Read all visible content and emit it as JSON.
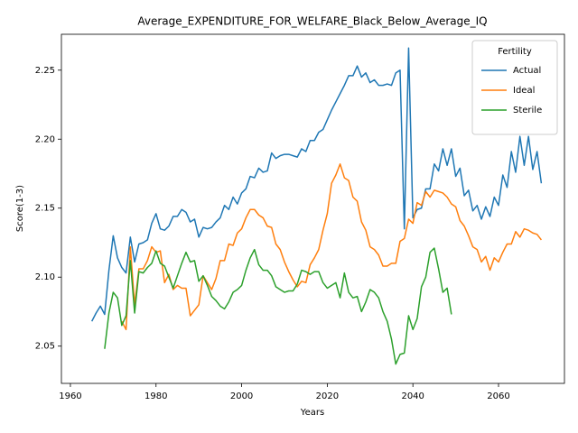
{
  "chart_data": {
    "type": "line",
    "title": "Average_EXPENDITURE_FOR_WELFARE_Black_Below_Average_IQ",
    "x_label": "Years",
    "y_label": "Score(1-3)",
    "xlim": [
      1957.9,
      2075.4
    ],
    "ylim": [
      2.023,
      2.276
    ],
    "xticks": [
      1960,
      1980,
      2000,
      2020,
      2040,
      2060
    ],
    "yticks": [
      2.05,
      {
        "value": 2.1,
        "label": "2.10"
      },
      2.15,
      {
        "value": 2.2,
        "label": "2.20"
      },
      2.25
    ],
    "grid": false,
    "legend_title": "Fertility",
    "legend_loc": "upper right",
    "series": [
      {
        "name": "Actual",
        "color": "#1f77b4",
        "x": [
          1965,
          1966,
          1967,
          1968,
          1969,
          1970,
          1971,
          1972,
          1973,
          1974,
          1975,
          1976,
          1977,
          1978,
          1979,
          1980,
          1981,
          1982,
          1983,
          1984,
          1985,
          1986,
          1987,
          1988,
          1989,
          1990,
          1991,
          1992,
          1993,
          1994,
          1995,
          1996,
          1997,
          1998,
          1999,
          2000,
          2001,
          2002,
          2003,
          2004,
          2005,
          2006,
          2007,
          2008,
          2009,
          2010,
          2011,
          2012,
          2013,
          2014,
          2015,
          2016,
          2017,
          2018,
          2019,
          2020,
          2021,
          2022,
          2023,
          2024,
          2025,
          2026,
          2027,
          2028,
          2029,
          2030,
          2031,
          2032,
          2033,
          2034,
          2035,
          2036,
          2037,
          2038,
          2039,
          2040,
          2041,
          2042,
          2043,
          2044,
          2045,
          2046,
          2047,
          2048,
          2049,
          2050,
          2051,
          2052,
          2053,
          2054,
          2055,
          2056,
          2057,
          2058,
          2059,
          2060,
          2061,
          2062,
          2063,
          2064,
          2065,
          2066,
          2067,
          2068,
          2069,
          2070
        ],
        "values": [
          2.068,
          2.074,
          2.079,
          2.073,
          2.105,
          2.13,
          2.114,
          2.107,
          2.103,
          2.129,
          2.111,
          2.124,
          2.125,
          2.127,
          2.139,
          2.146,
          2.135,
          2.134,
          2.137,
          2.144,
          2.144,
          2.149,
          2.147,
          2.14,
          2.142,
          2.129,
          2.136,
          2.135,
          2.136,
          2.14,
          2.143,
          2.152,
          2.149,
          2.158,
          2.153,
          2.161,
          2.164,
          2.173,
          2.172,
          2.179,
          2.176,
          2.177,
          2.19,
          2.186,
          2.188,
          2.189,
          2.189,
          2.188,
          2.187,
          2.193,
          2.191,
          2.199,
          2.199,
          2.205,
          2.207,
          2.214,
          2.221,
          2.227,
          2.233,
          2.239,
          2.246,
          2.246,
          2.253,
          2.245,
          2.248,
          2.241,
          2.243,
          2.239,
          2.239,
          2.24,
          2.239,
          2.248,
          2.25,
          2.135,
          2.266,
          2.143,
          2.149,
          2.15,
          2.164,
          2.164,
          2.182,
          2.177,
          2.193,
          2.181,
          2.193,
          2.173,
          2.179,
          2.159,
          2.163,
          2.148,
          2.152,
          2.142,
          2.151,
          2.144,
          2.158,
          2.152,
          2.174,
          2.165,
          2.191,
          2.176,
          2.202,
          2.181,
          2.202,
          2.178,
          2.191,
          2.168
        ]
      },
      {
        "name": "Ideal",
        "color": "#ff7f0e",
        "x": [
          1972,
          1973,
          1974,
          1975,
          1976,
          1977,
          1978,
          1979,
          1980,
          1981,
          1982,
          1983,
          1984,
          1985,
          1986,
          1987,
          1988,
          1989,
          1990,
          1991,
          1992,
          1993,
          1994,
          1995,
          1996,
          1997,
          1998,
          1999,
          2000,
          2001,
          2002,
          2003,
          2004,
          2005,
          2006,
          2007,
          2008,
          2009,
          2010,
          2011,
          2012,
          2013,
          2014,
          2015,
          2016,
          2017,
          2018,
          2019,
          2020,
          2021,
          2022,
          2023,
          2024,
          2025,
          2026,
          2027,
          2028,
          2029,
          2030,
          2031,
          2032,
          2033,
          2034,
          2035,
          2036,
          2037,
          2038,
          2039,
          2040,
          2041,
          2042,
          2043,
          2044,
          2045,
          2046,
          2047,
          2048,
          2049,
          2050,
          2051,
          2052,
          2053,
          2054,
          2055,
          2056,
          2057,
          2058,
          2059,
          2060,
          2061,
          2062,
          2063,
          2064,
          2065,
          2066,
          2067,
          2068,
          2069,
          2070
        ],
        "values": [
          2.068,
          2.062,
          2.122,
          2.08,
          2.106,
          2.106,
          2.112,
          2.122,
          2.118,
          2.119,
          2.096,
          2.102,
          2.091,
          2.094,
          2.092,
          2.092,
          2.072,
          2.076,
          2.08,
          2.101,
          2.096,
          2.091,
          2.099,
          2.112,
          2.112,
          2.124,
          2.123,
          2.132,
          2.135,
          2.143,
          2.149,
          2.149,
          2.145,
          2.143,
          2.137,
          2.136,
          2.124,
          2.12,
          2.111,
          2.104,
          2.098,
          2.093,
          2.097,
          2.096,
          2.109,
          2.114,
          2.12,
          2.134,
          2.146,
          2.168,
          2.174,
          2.182,
          2.172,
          2.17,
          2.158,
          2.155,
          2.14,
          2.134,
          2.122,
          2.12,
          2.116,
          2.108,
          2.108,
          2.11,
          2.11,
          2.126,
          2.128,
          2.142,
          2.139,
          2.154,
          2.152,
          2.162,
          2.158,
          2.163,
          2.162,
          2.161,
          2.158,
          2.153,
          2.151,
          2.141,
          2.137,
          2.13,
          2.122,
          2.12,
          2.111,
          2.115,
          2.105,
          2.114,
          2.111,
          2.118,
          2.124,
          2.124,
          2.133,
          2.129,
          2.135,
          2.134,
          2.132,
          2.131,
          2.127
        ]
      },
      {
        "name": "Sterile",
        "color": "#2ca02c",
        "x": [
          1968,
          1969,
          1970,
          1971,
          1972,
          1973,
          1974,
          1975,
          1976,
          1977,
          1978,
          1979,
          1980,
          1981,
          1982,
          1983,
          1984,
          1985,
          1986,
          1987,
          1988,
          1989,
          1990,
          1991,
          1992,
          1993,
          1994,
          1995,
          1996,
          1997,
          1998,
          1999,
          2000,
          2001,
          2002,
          2003,
          2004,
          2005,
          2006,
          2007,
          2008,
          2009,
          2010,
          2011,
          2012,
          2013,
          2014,
          2015,
          2016,
          2017,
          2018,
          2019,
          2020,
          2021,
          2022,
          2023,
          2024,
          2025,
          2026,
          2027,
          2028,
          2029,
          2030,
          2031,
          2032,
          2033,
          2034,
          2035,
          2036,
          2037,
          2038,
          2039,
          2040,
          2041,
          2042,
          2043,
          2044,
          2045,
          2046,
          2047,
          2048,
          2049
        ],
        "values": [
          2.048,
          2.074,
          2.089,
          2.085,
          2.065,
          2.072,
          2.112,
          2.074,
          2.104,
          2.103,
          2.107,
          2.11,
          2.119,
          2.11,
          2.108,
          2.1,
          2.092,
          2.101,
          2.11,
          2.118,
          2.111,
          2.112,
          2.097,
          2.101,
          2.094,
          2.086,
          2.083,
          2.079,
          2.077,
          2.082,
          2.089,
          2.091,
          2.094,
          2.105,
          2.114,
          2.12,
          2.109,
          2.105,
          2.105,
          2.101,
          2.093,
          2.091,
          2.089,
          2.09,
          2.09,
          2.095,
          2.105,
          2.104,
          2.102,
          2.104,
          2.104,
          2.096,
          2.092,
          2.094,
          2.096,
          2.085,
          2.103,
          2.089,
          2.085,
          2.086,
          2.075,
          2.082,
          2.091,
          2.089,
          2.085,
          2.075,
          2.068,
          2.055,
          2.037,
          2.044,
          2.045,
          2.072,
          2.062,
          2.07,
          2.093,
          2.1,
          2.118,
          2.121,
          2.106,
          2.089,
          2.092,
          2.073
        ]
      }
    ]
  }
}
